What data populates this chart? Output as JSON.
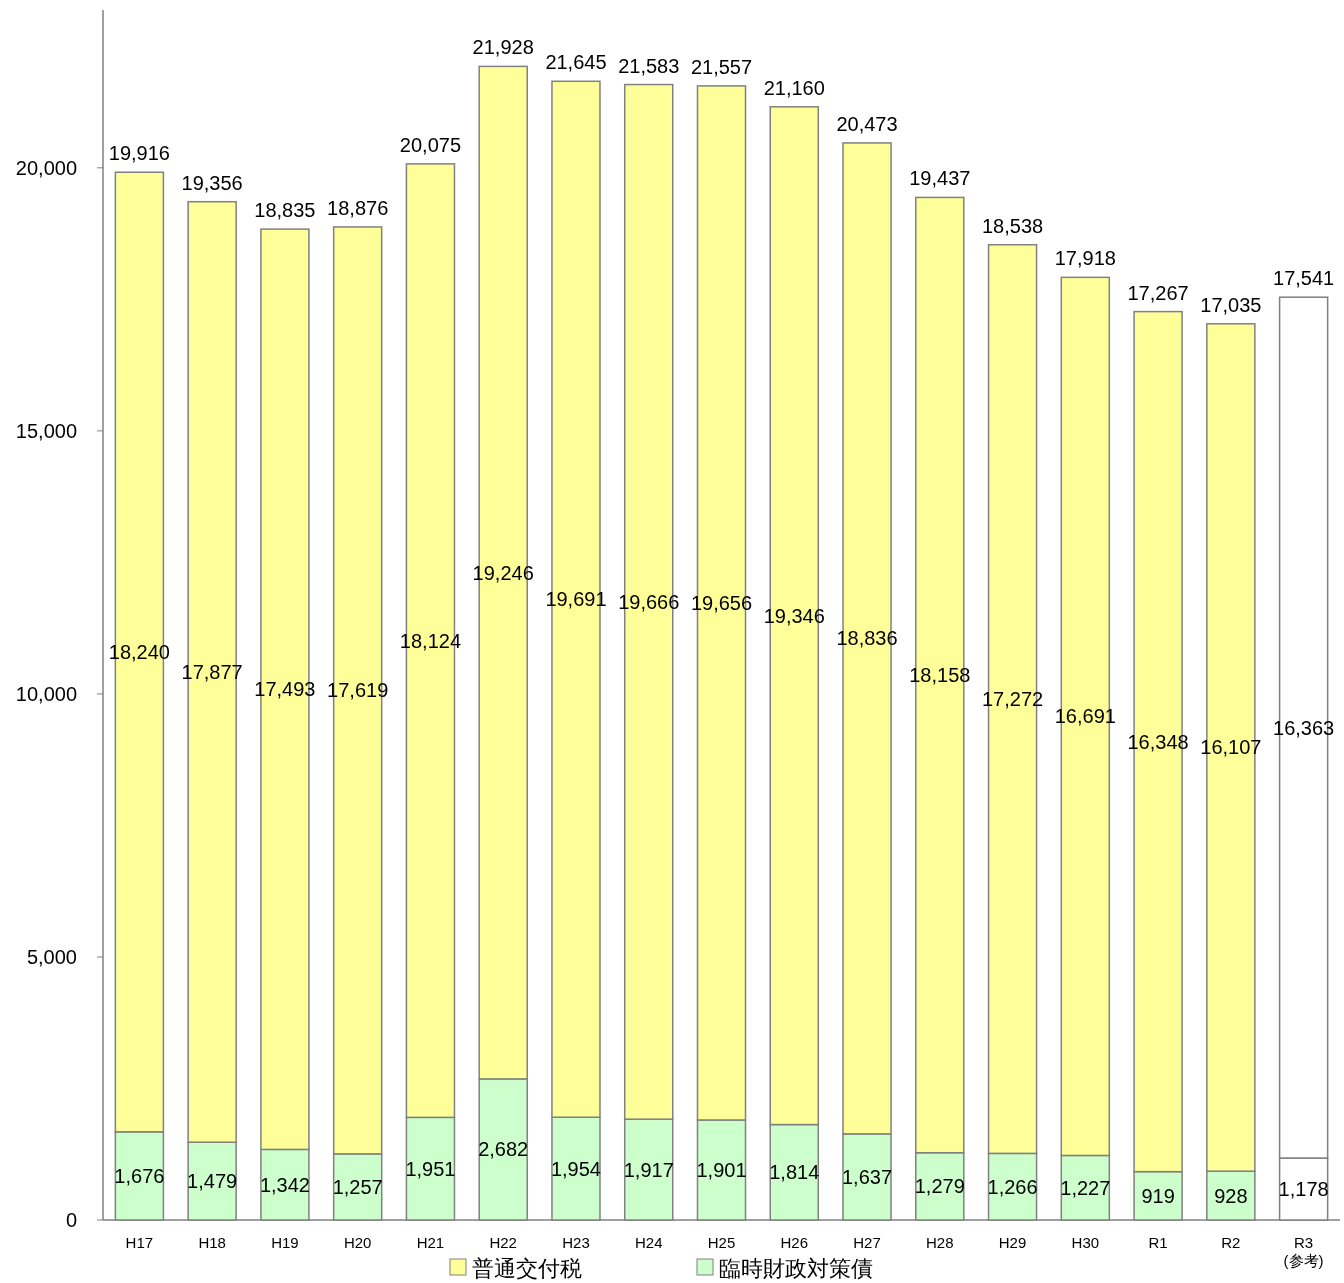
{
  "chart_data": {
    "type": "bar",
    "stacked": true,
    "legend": "bottom",
    "grid": false,
    "categories": [
      "H17",
      "H18",
      "H19",
      "H20",
      "H21",
      "H22",
      "H23",
      "H24",
      "H25",
      "H26",
      "H27",
      "H28",
      "H29",
      "H30",
      "R1",
      "R2",
      "R3\n(参考)"
    ],
    "series": [
      {
        "name": "臨時財政対策債",
        "color": "#ccffcc",
        "colors": [
          "#ccffcc",
          "#ccffcc",
          "#ccffcc",
          "#ccffcc",
          "#ccffcc",
          "#ccffcc",
          "#ccffcc",
          "#ccffcc",
          "#ccffcc",
          "#ccffcc",
          "#ccffcc",
          "#ccffcc",
          "#ccffcc",
          "#ccffcc",
          "#ccffcc",
          "#ccffcc",
          "#ffffff"
        ],
        "values": [
          1676,
          1479,
          1342,
          1257,
          1951,
          2682,
          1954,
          1917,
          1901,
          1814,
          1637,
          1279,
          1266,
          1227,
          919,
          928,
          1178
        ],
        "value_labels": [
          "1,676",
          "1,479",
          "1,342",
          "1,257",
          "1,951",
          "2,682",
          "1,954",
          "1,917",
          "1,901",
          "1,814",
          "1,637",
          "1,279",
          "1,266",
          "1,227",
          "919",
          "928",
          "1,178"
        ]
      },
      {
        "name": "普通交付税",
        "color": "#ffff99",
        "colors": [
          "#ffff99",
          "#ffff99",
          "#ffff99",
          "#ffff99",
          "#ffff99",
          "#ffff99",
          "#ffff99",
          "#ffff99",
          "#ffff99",
          "#ffff99",
          "#ffff99",
          "#ffff99",
          "#ffff99",
          "#ffff99",
          "#ffff99",
          "#ffff99",
          "#ffffff"
        ],
        "values": [
          18240,
          17877,
          17493,
          17619,
          18124,
          19246,
          19691,
          19666,
          19656,
          19346,
          18836,
          18158,
          17272,
          16691,
          16348,
          16107,
          16363
        ],
        "value_labels": [
          "18,240",
          "17,877",
          "17,493",
          "17,619",
          "18,124",
          "19,246",
          "19,691",
          "19,666",
          "19,656",
          "19,346",
          "18,836",
          "18,158",
          "17,272",
          "16,691",
          "16,348",
          "16,107",
          "16,363"
        ]
      }
    ],
    "totals": [
      "19,916",
      "19,356",
      "18,835",
      "18,876",
      "20,075",
      "21,928",
      "21,645",
      "21,583",
      "21,557",
      "21,160",
      "20,473",
      "19,437",
      "18,538",
      "17,918",
      "17,267",
      "17,035",
      "17,541"
    ],
    "ylim": [
      0,
      23000
    ],
    "yticks": [
      0,
      {
        "value": 5000,
        "label": "5,000"
      },
      {
        "value": 10000,
        "label": "10,000"
      },
      {
        "value": 15000,
        "label": "15,000"
      },
      {
        "value": 20000,
        "label": "20,000"
      }
    ]
  }
}
